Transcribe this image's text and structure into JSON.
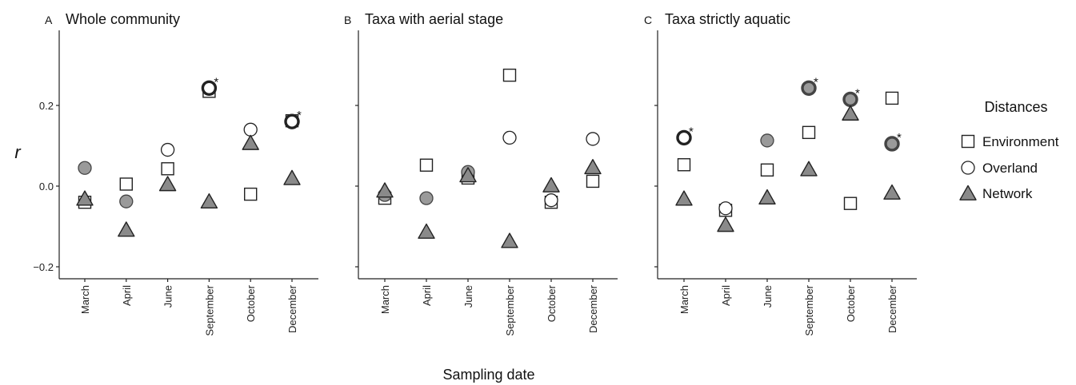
{
  "chart_data": {
    "type": "scatter",
    "ylabel": "r",
    "xlabel": "Sampling date",
    "ylim": [
      -0.225,
      0.37
    ],
    "y_ticks": [
      -0.2,
      0.0,
      0.2
    ],
    "y_tick_labels": [
      "−0.2",
      "0.0",
      "0.2"
    ],
    "categories": [
      "March",
      "April",
      "June",
      "September",
      "October",
      "December"
    ],
    "legend": {
      "title": "Distances",
      "placement": "right",
      "entries": [
        {
          "name": "Environment",
          "shape": "square"
        },
        {
          "name": "Overland",
          "shape": "circle"
        },
        {
          "name": "Network",
          "shape": "triangle"
        }
      ]
    },
    "styles": {
      "Environment": {
        "fill": "#ffffff",
        "stroke": "#222222"
      },
      "Overland": {
        "fill": "#ffffff",
        "stroke": "#222222"
      },
      "Overland_shaded": {
        "fill": "#9a9a9a",
        "stroke": "#444444"
      },
      "Network": {
        "fill": "#8a8a8a",
        "stroke": "#222222"
      },
      "significant_marker": "*"
    },
    "panels": [
      {
        "letter": "A",
        "title": "Whole community",
        "show_y_ticks": true,
        "series": [
          {
            "name": "Environment",
            "values": [
              -0.04,
              0.005,
              0.043,
              0.235,
              -0.02,
              0.162
            ]
          },
          {
            "name": "Overland",
            "values": [
              0.045,
              -0.038,
              0.09,
              0.243,
              0.14,
              0.16
            ],
            "shaded": [
              true,
              true,
              false,
              false,
              false,
              false
            ],
            "significant": [
              false,
              false,
              false,
              true,
              false,
              true
            ]
          },
          {
            "name": "Network",
            "values": [
              -0.033,
              -0.11,
              0.003,
              -0.04,
              0.105,
              0.018
            ]
          }
        ]
      },
      {
        "letter": "B",
        "title": "Taxa with aerial stage",
        "show_y_ticks": false,
        "series": [
          {
            "name": "Environment",
            "values": [
              -0.03,
              0.052,
              0.02,
              0.275,
              -0.04,
              0.012
            ]
          },
          {
            "name": "Overland",
            "values": [
              -0.022,
              -0.03,
              0.035,
              0.12,
              -0.035,
              0.117
            ],
            "shaded": [
              true,
              true,
              true,
              false,
              false,
              false
            ],
            "significant": [
              false,
              false,
              false,
              false,
              false,
              false
            ]
          },
          {
            "name": "Network",
            "values": [
              -0.013,
              -0.115,
              0.025,
              -0.138,
              0.0,
              0.045
            ]
          }
        ]
      },
      {
        "letter": "C",
        "title": "Taxa strictly aquatic",
        "show_y_ticks": false,
        "series": [
          {
            "name": "Environment",
            "values": [
              0.053,
              -0.06,
              0.04,
              0.133,
              -0.043,
              0.218
            ]
          },
          {
            "name": "Overland",
            "values": [
              0.12,
              -0.055,
              0.113,
              0.243,
              0.215,
              0.105
            ],
            "shaded": [
              false,
              false,
              true,
              true,
              true,
              true
            ],
            "significant": [
              true,
              false,
              false,
              true,
              true,
              true
            ]
          },
          {
            "name": "Network",
            "values": [
              -0.033,
              -0.098,
              -0.03,
              0.04,
              0.178,
              -0.018
            ]
          }
        ]
      }
    ]
  }
}
